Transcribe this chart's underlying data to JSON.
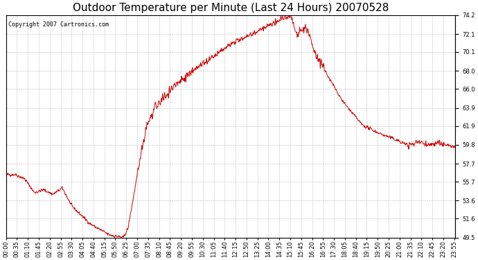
{
  "title": "Outdoor Temperature per Minute (Last 24 Hours) 20070528",
  "copyright_text": "Copyright 2007 Cartronics.com",
  "line_color": "#CC0000",
  "background_color": "#ffffff",
  "grid_color": "#aaaaaa",
  "ylim": [
    49.5,
    74.2
  ],
  "yticks": [
    49.5,
    51.6,
    53.6,
    55.7,
    57.7,
    59.8,
    61.9,
    63.9,
    66.0,
    68.0,
    70.1,
    72.1,
    74.2
  ],
  "xtick_labels": [
    "00:00",
    "00:35",
    "01:10",
    "01:45",
    "02:20",
    "02:55",
    "03:30",
    "04:05",
    "04:40",
    "05:15",
    "05:50",
    "06:25",
    "07:00",
    "07:35",
    "08:10",
    "08:45",
    "09:20",
    "09:55",
    "10:30",
    "11:05",
    "11:40",
    "12:15",
    "12:50",
    "13:25",
    "14:00",
    "14:35",
    "15:10",
    "15:45",
    "16:20",
    "16:55",
    "17:30",
    "18:05",
    "18:40",
    "19:15",
    "19:50",
    "20:25",
    "21:00",
    "21:35",
    "22:10",
    "22:45",
    "23:20",
    "23:55"
  ],
  "xtick_minutes": [
    0,
    35,
    70,
    105,
    140,
    175,
    210,
    245,
    280,
    315,
    350,
    385,
    420,
    455,
    490,
    525,
    560,
    595,
    630,
    665,
    700,
    735,
    770,
    805,
    840,
    875,
    910,
    945,
    980,
    1015,
    1050,
    1085,
    1120,
    1155,
    1190,
    1225,
    1260,
    1295,
    1330,
    1365,
    1400,
    1435
  ],
  "title_fontsize": 11,
  "tick_fontsize": 6,
  "copyright_fontsize": 6
}
